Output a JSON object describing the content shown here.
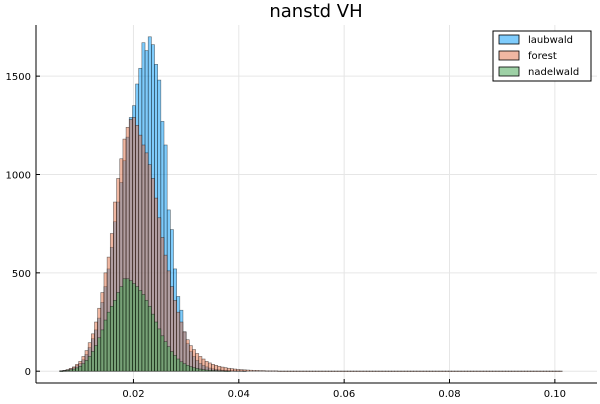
{
  "chart_data": {
    "type": "bar",
    "title": "nanstd VH",
    "xlabel": "",
    "ylabel": "",
    "xlim": [
      0.0015,
      0.108
    ],
    "ylim": [
      -60,
      1760
    ],
    "xticks": [
      0.02,
      0.04,
      0.06,
      0.08,
      0.1
    ],
    "xtick_labels": [
      "0.02",
      "0.04",
      "0.06",
      "0.08",
      "0.10"
    ],
    "yticks": [
      0,
      500,
      1000,
      1500
    ],
    "ytick_labels": [
      "0",
      "500",
      "1000",
      "1500"
    ],
    "grid": true,
    "legend_position": "top-right",
    "bin_width": 0.0006,
    "series": [
      {
        "name": "laubwald",
        "color": "#009af9",
        "bins": [
          [
            0.0063,
            2
          ],
          [
            0.0069,
            4
          ],
          [
            0.0075,
            7
          ],
          [
            0.0081,
            12
          ],
          [
            0.0087,
            18
          ],
          [
            0.0093,
            28
          ],
          [
            0.0099,
            40
          ],
          [
            0.0105,
            58
          ],
          [
            0.0111,
            85
          ],
          [
            0.0117,
            120
          ],
          [
            0.0123,
            165
          ],
          [
            0.0129,
            210
          ],
          [
            0.0135,
            270
          ],
          [
            0.0141,
            350
          ],
          [
            0.0147,
            430
          ],
          [
            0.0153,
            520
          ],
          [
            0.0159,
            630
          ],
          [
            0.0165,
            760
          ],
          [
            0.0171,
            860
          ],
          [
            0.0177,
            960
          ],
          [
            0.0183,
            1070
          ],
          [
            0.0189,
            1190
          ],
          [
            0.0195,
            1290
          ],
          [
            0.0201,
            1350
          ],
          [
            0.0207,
            1460
          ],
          [
            0.0213,
            1540
          ],
          [
            0.0219,
            1670
          ],
          [
            0.0225,
            1630
          ],
          [
            0.0231,
            1700
          ],
          [
            0.0237,
            1660
          ],
          [
            0.0243,
            1560
          ],
          [
            0.0249,
            1480
          ],
          [
            0.0255,
            1270
          ],
          [
            0.0261,
            1150
          ],
          [
            0.0267,
            820
          ],
          [
            0.0273,
            720
          ],
          [
            0.0279,
            520
          ],
          [
            0.0285,
            380
          ],
          [
            0.0291,
            310
          ],
          [
            0.0297,
            200
          ],
          [
            0.0303,
            140
          ],
          [
            0.0309,
            100
          ],
          [
            0.0315,
            75
          ],
          [
            0.0321,
            55
          ],
          [
            0.0327,
            40
          ],
          [
            0.0333,
            30
          ],
          [
            0.0339,
            22
          ],
          [
            0.0345,
            16
          ],
          [
            0.0351,
            12
          ],
          [
            0.0357,
            9
          ],
          [
            0.0363,
            7
          ],
          [
            0.0369,
            5
          ],
          [
            0.0375,
            4
          ],
          [
            0.0381,
            3
          ],
          [
            0.0387,
            3
          ],
          [
            0.0393,
            2
          ],
          [
            0.0399,
            2
          ],
          [
            0.0405,
            2
          ],
          [
            0.0411,
            1
          ]
        ]
      },
      {
        "name": "forest",
        "color": "#e26f46",
        "bins": [
          [
            0.0063,
            2
          ],
          [
            0.0069,
            4
          ],
          [
            0.0075,
            8
          ],
          [
            0.0081,
            14
          ],
          [
            0.0087,
            22
          ],
          [
            0.0093,
            35
          ],
          [
            0.0099,
            50
          ],
          [
            0.0105,
            75
          ],
          [
            0.0111,
            105
          ],
          [
            0.0117,
            145
          ],
          [
            0.0123,
            190
          ],
          [
            0.0129,
            250
          ],
          [
            0.0135,
            320
          ],
          [
            0.0141,
            400
          ],
          [
            0.0147,
            500
          ],
          [
            0.0153,
            580
          ],
          [
            0.0159,
            700
          ],
          [
            0.0165,
            860
          ],
          [
            0.0171,
            980
          ],
          [
            0.0177,
            1080
          ],
          [
            0.0183,
            1180
          ],
          [
            0.0189,
            1240
          ],
          [
            0.0195,
            1280
          ],
          [
            0.0201,
            1290
          ],
          [
            0.0207,
            1250
          ],
          [
            0.0213,
            1200
          ],
          [
            0.0219,
            1150
          ],
          [
            0.0225,
            1110
          ],
          [
            0.0231,
            1050
          ],
          [
            0.0237,
            980
          ],
          [
            0.0243,
            880
          ],
          [
            0.0249,
            780
          ],
          [
            0.0255,
            680
          ],
          [
            0.0261,
            590
          ],
          [
            0.0267,
            510
          ],
          [
            0.0273,
            430
          ],
          [
            0.0279,
            360
          ],
          [
            0.0285,
            300
          ],
          [
            0.0291,
            250
          ],
          [
            0.0297,
            200
          ],
          [
            0.0303,
            160
          ],
          [
            0.0309,
            130
          ],
          [
            0.0315,
            110
          ],
          [
            0.0321,
            90
          ],
          [
            0.0327,
            75
          ],
          [
            0.0333,
            62
          ],
          [
            0.0339,
            50
          ],
          [
            0.0345,
            42
          ],
          [
            0.0351,
            35
          ],
          [
            0.0357,
            30
          ],
          [
            0.0363,
            25
          ],
          [
            0.0369,
            21
          ],
          [
            0.0375,
            18
          ],
          [
            0.0381,
            15
          ],
          [
            0.0387,
            13
          ],
          [
            0.0393,
            11
          ],
          [
            0.0399,
            9
          ],
          [
            0.0405,
            8
          ],
          [
            0.0411,
            7
          ],
          [
            0.0417,
            6
          ],
          [
            0.0423,
            5
          ],
          [
            0.0429,
            4
          ],
          [
            0.0435,
            4
          ],
          [
            0.0441,
            3
          ],
          [
            0.0447,
            3
          ],
          [
            0.0453,
            2
          ],
          [
            0.0459,
            2
          ],
          [
            0.0465,
            2
          ],
          [
            0.0471,
            2
          ],
          [
            0.0477,
            1
          ],
          [
            0.0483,
            1
          ],
          [
            0.0489,
            1
          ],
          [
            0.0495,
            1
          ],
          [
            0.0501,
            1
          ],
          [
            0.0507,
            1
          ],
          [
            0.0513,
            1
          ],
          [
            0.0519,
            1
          ],
          [
            0.0525,
            1
          ],
          [
            0.0531,
            1
          ],
          [
            0.0537,
            1
          ],
          [
            0.0543,
            1
          ],
          [
            0.0549,
            1
          ],
          [
            0.0555,
            1
          ],
          [
            0.0561,
            1
          ],
          [
            0.0567,
            1
          ],
          [
            0.0573,
            1
          ],
          [
            0.0579,
            1
          ],
          [
            0.0585,
            1
          ],
          [
            0.0591,
            1
          ],
          [
            0.0597,
            1
          ],
          [
            0.0603,
            1
          ],
          [
            0.0609,
            1
          ],
          [
            0.0615,
            1
          ],
          [
            0.0621,
            1
          ],
          [
            0.0627,
            1
          ],
          [
            0.0633,
            1
          ],
          [
            0.0639,
            1
          ],
          [
            0.0645,
            1
          ],
          [
            0.0651,
            1
          ],
          [
            0.0657,
            1
          ],
          [
            0.0663,
            1
          ],
          [
            0.0669,
            1
          ],
          [
            0.0675,
            1
          ],
          [
            0.0681,
            1
          ],
          [
            0.0687,
            1
          ],
          [
            0.0693,
            1
          ],
          [
            0.0699,
            1
          ],
          [
            0.0705,
            1
          ],
          [
            0.0711,
            1
          ],
          [
            0.0717,
            1
          ],
          [
            0.0723,
            1
          ],
          [
            0.0729,
            1
          ],
          [
            0.0735,
            1
          ],
          [
            0.0741,
            1
          ],
          [
            0.0747,
            1
          ],
          [
            0.0753,
            1
          ],
          [
            0.0759,
            1
          ],
          [
            0.0765,
            1
          ],
          [
            0.0771,
            1
          ],
          [
            0.0777,
            1
          ],
          [
            0.0783,
            1
          ],
          [
            0.0789,
            1
          ],
          [
            0.0795,
            1
          ],
          [
            0.0801,
            1
          ],
          [
            0.0807,
            1
          ],
          [
            0.0813,
            1
          ],
          [
            0.0819,
            1
          ],
          [
            0.0825,
            1
          ],
          [
            0.0831,
            1
          ],
          [
            0.0837,
            1
          ],
          [
            0.0843,
            1
          ],
          [
            0.0849,
            1
          ],
          [
            0.0855,
            1
          ],
          [
            0.0861,
            1
          ],
          [
            0.0867,
            1
          ],
          [
            0.0873,
            1
          ],
          [
            0.0879,
            1
          ],
          [
            0.0885,
            1
          ],
          [
            0.0891,
            1
          ],
          [
            0.0897,
            1
          ],
          [
            0.0903,
            1
          ],
          [
            0.0909,
            1
          ],
          [
            0.0915,
            1
          ],
          [
            0.0921,
            1
          ],
          [
            0.0927,
            1
          ],
          [
            0.0933,
            1
          ],
          [
            0.0939,
            1
          ],
          [
            0.0945,
            1
          ],
          [
            0.0951,
            1
          ],
          [
            0.0957,
            1
          ],
          [
            0.0963,
            1
          ],
          [
            0.0969,
            1
          ],
          [
            0.0975,
            1
          ],
          [
            0.0981,
            1
          ],
          [
            0.0987,
            1
          ],
          [
            0.0993,
            1
          ],
          [
            0.0999,
            1
          ],
          [
            0.1005,
            1
          ],
          [
            0.1011,
            1
          ]
        ]
      },
      {
        "name": "nadelwald",
        "color": "#3da44d",
        "bins": [
          [
            0.0063,
            1
          ],
          [
            0.0069,
            2
          ],
          [
            0.0075,
            4
          ],
          [
            0.0081,
            7
          ],
          [
            0.0087,
            11
          ],
          [
            0.0093,
            17
          ],
          [
            0.0099,
            25
          ],
          [
            0.0105,
            38
          ],
          [
            0.0111,
            55
          ],
          [
            0.0117,
            75
          ],
          [
            0.0123,
            100
          ],
          [
            0.0129,
            130
          ],
          [
            0.0135,
            170
          ],
          [
            0.0141,
            210
          ],
          [
            0.0147,
            260
          ],
          [
            0.0153,
            300
          ],
          [
            0.0159,
            330
          ],
          [
            0.0165,
            360
          ],
          [
            0.0171,
            400
          ],
          [
            0.0177,
            430
          ],
          [
            0.0183,
            470
          ],
          [
            0.0189,
            470
          ],
          [
            0.0195,
            460
          ],
          [
            0.0201,
            445
          ],
          [
            0.0207,
            430
          ],
          [
            0.0213,
            410
          ],
          [
            0.0219,
            390
          ],
          [
            0.0225,
            360
          ],
          [
            0.0231,
            330
          ],
          [
            0.0237,
            290
          ],
          [
            0.0243,
            250
          ],
          [
            0.0249,
            215
          ],
          [
            0.0255,
            180
          ],
          [
            0.0261,
            150
          ],
          [
            0.0267,
            125
          ],
          [
            0.0273,
            100
          ],
          [
            0.0279,
            80
          ],
          [
            0.0285,
            62
          ],
          [
            0.0291,
            48
          ],
          [
            0.0297,
            38
          ],
          [
            0.0303,
            30
          ],
          [
            0.0309,
            23
          ],
          [
            0.0315,
            18
          ],
          [
            0.0321,
            14
          ],
          [
            0.0327,
            11
          ],
          [
            0.0333,
            8
          ],
          [
            0.0339,
            6
          ],
          [
            0.0345,
            5
          ],
          [
            0.0351,
            4
          ],
          [
            0.0357,
            3
          ],
          [
            0.0363,
            2
          ],
          [
            0.0369,
            2
          ],
          [
            0.0375,
            1
          ],
          [
            0.0381,
            1
          ]
        ]
      }
    ]
  }
}
